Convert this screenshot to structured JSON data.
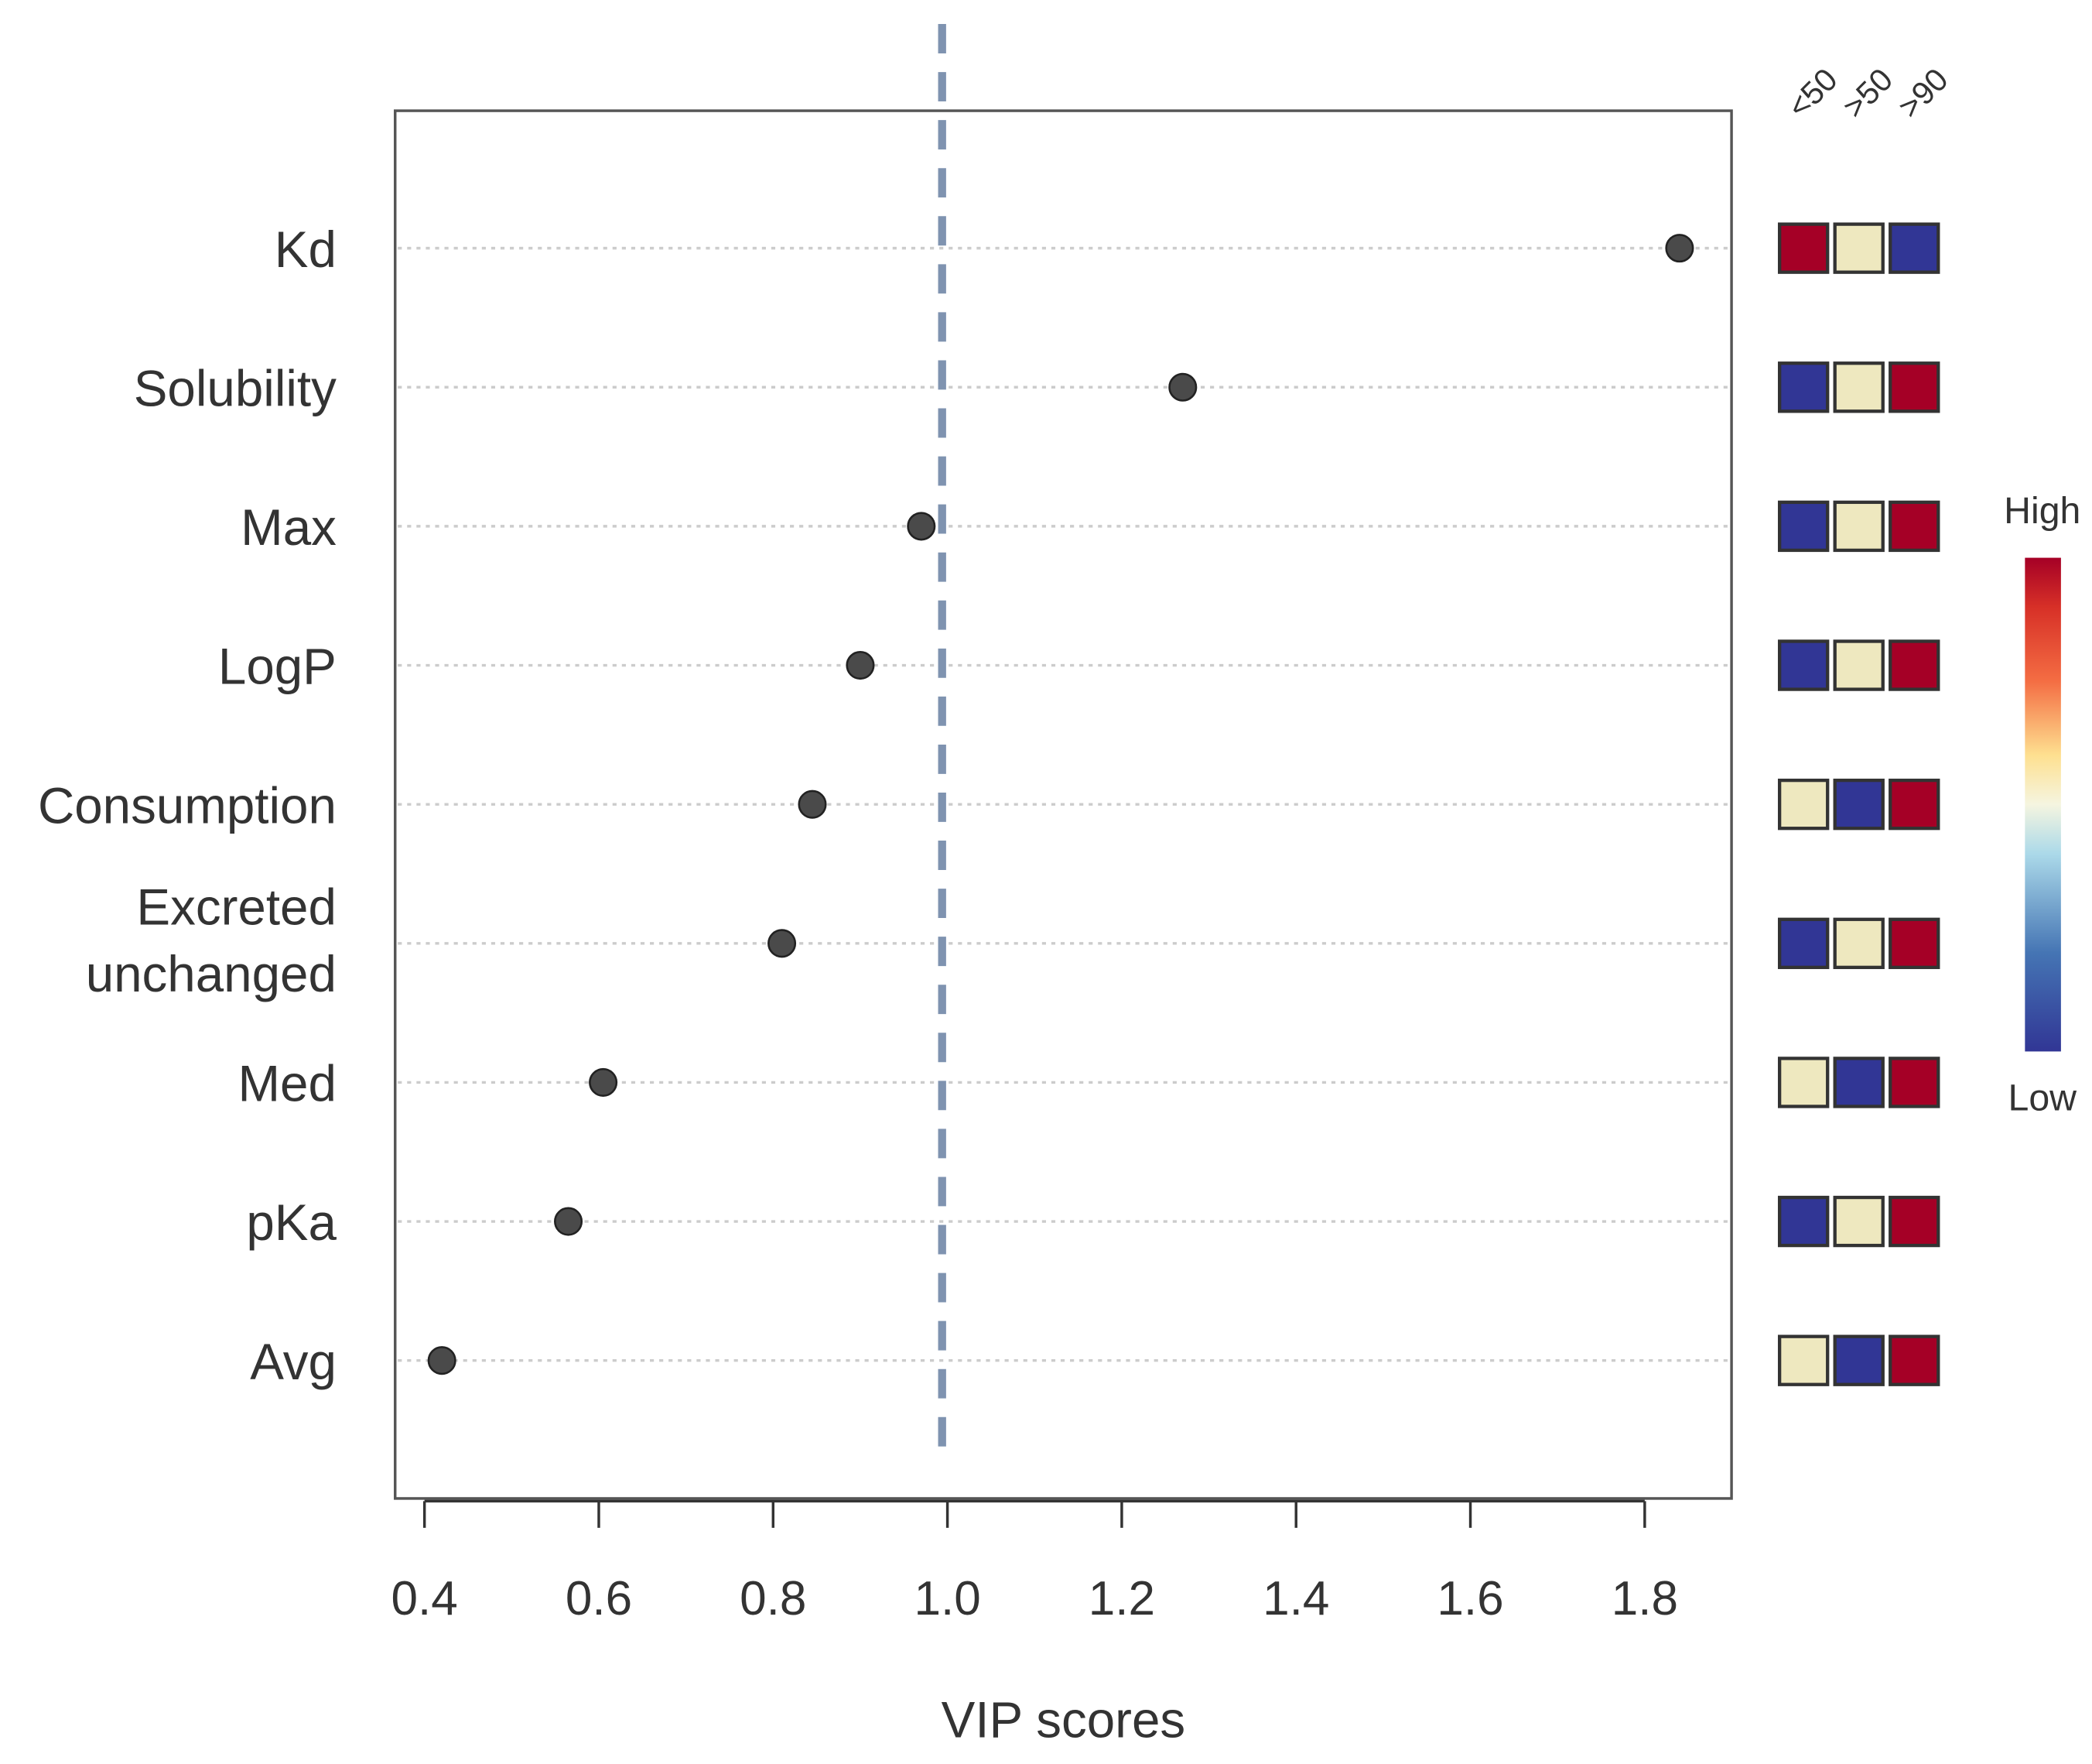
{
  "chart_data": {
    "type": "scatter",
    "xlabel": "VIP scores",
    "ylabel": "",
    "xlim": [
      0.365,
      1.9
    ],
    "x_ticks": [
      "0.4",
      "0.6",
      "0.8",
      "1.0",
      "1.2",
      "1.4",
      "1.6",
      "1.8"
    ],
    "threshold": 1.0,
    "grid": "horizontal dotted",
    "categories": [
      "Kd",
      "Solubility",
      "Max",
      "LogP",
      "Consumption",
      "Excreted unchanged",
      "Med",
      "pKa",
      "Avg"
    ],
    "category_lines": [
      [
        "Kd"
      ],
      [
        "Solubility"
      ],
      [
        "Max"
      ],
      [
        "LogP"
      ],
      [
        "Consumption"
      ],
      [
        "Excreted",
        "unchanged"
      ],
      [
        "Med"
      ],
      [
        "pKa"
      ],
      [
        "Avg"
      ]
    ],
    "values": [
      1.84,
      1.27,
      0.97,
      0.9,
      0.845,
      0.81,
      0.605,
      0.565,
      0.42
    ],
    "heatmap": {
      "columns": [
        "<50",
        ">50",
        ">90"
      ],
      "levels": [
        [
          "high",
          "mid",
          "low"
        ],
        [
          "low",
          "mid",
          "high"
        ],
        [
          "low",
          "mid",
          "high"
        ],
        [
          "low",
          "mid",
          "high"
        ],
        [
          "mid",
          "low",
          "high"
        ],
        [
          "low",
          "mid",
          "high"
        ],
        [
          "mid",
          "low",
          "high"
        ],
        [
          "low",
          "mid",
          "high"
        ],
        [
          "mid",
          "low",
          "high"
        ]
      ],
      "colors": {
        "high": "#A50026",
        "mid": "#EEE8BF",
        "low": "#313695"
      }
    },
    "legend": {
      "high_label": "High",
      "low_label": "Low",
      "placement": "right"
    }
  }
}
